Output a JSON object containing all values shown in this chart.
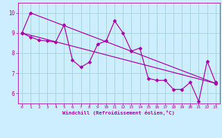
{
  "background_color": "#cceeff",
  "line_color": "#aa00aa",
  "grid_color": "#99cccc",
  "xlabel": "Windchill (Refroidissement éolien,°C)",
  "xlim": [
    -0.5,
    23.5
  ],
  "ylim": [
    5.5,
    10.5
  ],
  "yticks": [
    6,
    7,
    8,
    9,
    10
  ],
  "xticks": [
    0,
    1,
    2,
    3,
    4,
    5,
    6,
    7,
    8,
    9,
    10,
    11,
    12,
    13,
    14,
    15,
    16,
    17,
    18,
    19,
    20,
    21,
    22,
    23
  ],
  "line1_x": [
    0,
    1,
    2,
    3,
    4,
    5,
    6,
    7,
    8,
    9,
    10,
    11,
    12,
    13,
    14,
    15,
    16,
    17,
    18,
    19,
    20,
    21,
    22,
    23
  ],
  "line1_y": [
    9.0,
    8.8,
    8.65,
    8.6,
    8.55,
    9.4,
    7.65,
    7.3,
    7.55,
    8.45,
    8.6,
    9.6,
    9.0,
    8.1,
    8.25,
    6.75,
    6.65,
    6.65,
    6.2,
    6.2,
    6.55,
    5.6,
    7.6,
    6.55
  ],
  "line2_x": [
    0,
    1,
    23
  ],
  "line2_y": [
    9.0,
    10.0,
    6.5
  ],
  "line3_x": [
    0,
    23
  ],
  "line3_y": [
    9.0,
    6.5
  ],
  "marker": "D",
  "markersize": 2.5,
  "linewidth": 0.9
}
